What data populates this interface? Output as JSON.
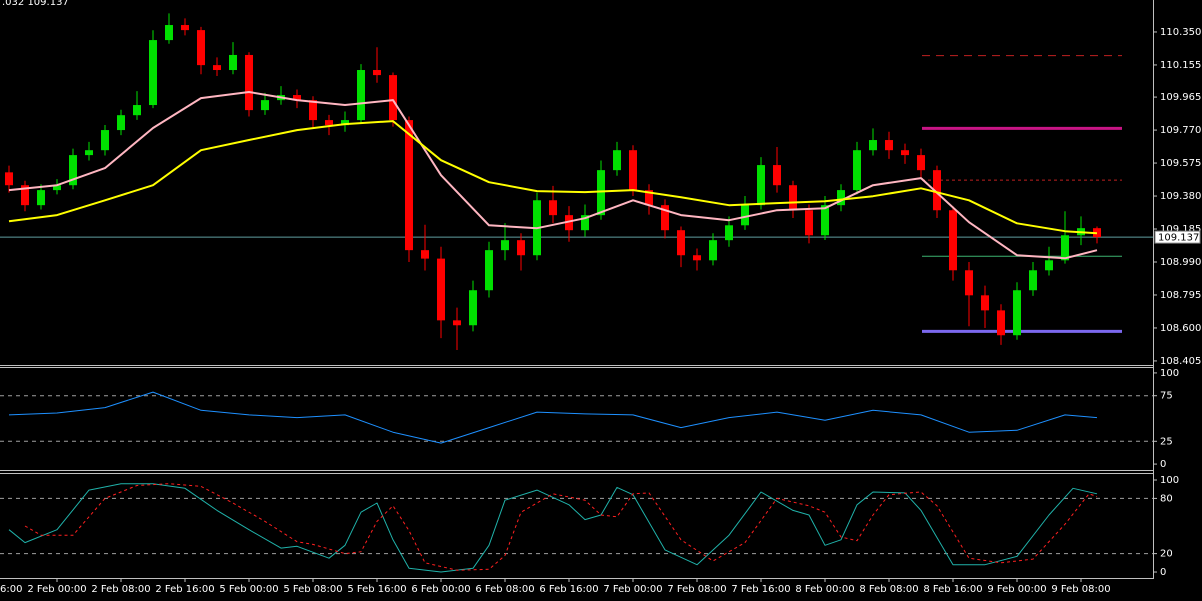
{
  "chart_data": [
    {
      "type": "candlestick",
      "title": ".032 109.137",
      "open": [
        109.52,
        109.444,
        109.326,
        109.415,
        109.444,
        109.622,
        109.651,
        109.77,
        109.858,
        109.918,
        110.302,
        110.391,
        110.361,
        110.154,
        110.125,
        110.214,
        109.888,
        109.947,
        109.977,
        109.947,
        109.829,
        109.799,
        109.829,
        110.125,
        110.095,
        109.829,
        109.06,
        109.01,
        108.645,
        108.616,
        108.823,
        109.06,
        109.119,
        109.03,
        109.355,
        109.267,
        109.178,
        109.267,
        109.533,
        109.651,
        109.415,
        109.326,
        109.178,
        109.03,
        109.0,
        109.119,
        109.207,
        109.326,
        109.563,
        109.444,
        109.296,
        109.148,
        109.326,
        109.415,
        109.651,
        109.711,
        109.651,
        109.622,
        109.533,
        109.296,
        108.941,
        108.793,
        108.704,
        108.557,
        108.823,
        108.941,
        109.0,
        109.148,
        109.19
      ],
      "high": [
        109.56,
        109.47,
        109.45,
        109.48,
        109.66,
        109.7,
        109.8,
        109.89,
        110.0,
        110.36,
        110.46,
        110.43,
        110.38,
        110.2,
        110.29,
        110.23,
        109.99,
        110.03,
        110.01,
        109.97,
        109.86,
        109.88,
        110.16,
        110.26,
        110.11,
        109.85,
        109.21,
        109.08,
        108.72,
        108.88,
        109.11,
        109.22,
        109.16,
        109.4,
        109.44,
        109.32,
        109.33,
        109.59,
        109.7,
        109.68,
        109.45,
        109.36,
        109.2,
        109.07,
        109.16,
        109.26,
        109.38,
        109.61,
        109.67,
        109.47,
        109.33,
        109.38,
        109.45,
        109.7,
        109.78,
        109.76,
        109.69,
        109.66,
        109.56,
        109.32,
        108.99,
        108.85,
        108.74,
        108.87,
        108.99,
        109.08,
        109.29,
        109.26,
        109.2
      ],
      "low": [
        109.4,
        109.29,
        109.3,
        109.39,
        109.42,
        109.59,
        109.62,
        109.74,
        109.83,
        109.9,
        110.28,
        110.33,
        110.1,
        110.09,
        110.1,
        109.85,
        109.86,
        109.92,
        109.9,
        109.78,
        109.74,
        109.76,
        109.81,
        110.05,
        109.79,
        108.99,
        108.94,
        108.54,
        108.47,
        108.58,
        108.78,
        109.0,
        108.94,
        109.0,
        109.22,
        109.11,
        109.14,
        109.24,
        109.5,
        109.38,
        109.27,
        109.13,
        108.96,
        108.94,
        108.97,
        109.08,
        109.18,
        109.3,
        109.4,
        109.25,
        109.1,
        109.12,
        109.29,
        109.39,
        109.62,
        109.6,
        109.57,
        109.48,
        109.25,
        108.88,
        108.61,
        108.6,
        108.5,
        108.53,
        108.79,
        108.91,
        108.98,
        109.09,
        109.1
      ],
      "close": [
        109.444,
        109.326,
        109.415,
        109.444,
        109.622,
        109.651,
        109.77,
        109.858,
        109.918,
        110.302,
        110.391,
        110.361,
        110.154,
        110.125,
        110.214,
        109.888,
        109.947,
        109.977,
        109.947,
        109.829,
        109.799,
        109.829,
        110.125,
        110.095,
        109.829,
        109.06,
        109.01,
        108.645,
        108.616,
        108.823,
        109.06,
        109.119,
        109.03,
        109.355,
        109.267,
        109.178,
        109.267,
        109.533,
        109.651,
        109.415,
        109.326,
        109.178,
        109.03,
        109.0,
        109.119,
        109.207,
        109.326,
        109.563,
        109.444,
        109.296,
        109.148,
        109.326,
        109.415,
        109.651,
        109.711,
        109.651,
        109.622,
        109.533,
        109.296,
        108.941,
        108.793,
        108.704,
        108.557,
        108.823,
        108.941,
        109.0,
        109.148,
        109.19,
        109.137
      ],
      "up_color": "#00e000",
      "down_color": "#ff0000",
      "series": [
        {
          "color": "#ffb6c1",
          "x": [
            0,
            3,
            6,
            9,
            12,
            15,
            18,
            21,
            24,
            27,
            30,
            33,
            36,
            39,
            42,
            45,
            48,
            51,
            54,
            57,
            60,
            63,
            66,
            68
          ],
          "values": [
            109.415,
            109.444,
            109.545,
            109.782,
            109.959,
            109.995,
            109.947,
            109.918,
            109.947,
            109.503,
            109.207,
            109.19,
            109.249,
            109.355,
            109.267,
            109.237,
            109.296,
            109.308,
            109.444,
            109.486,
            109.225,
            109.03,
            109.012,
            109.06
          ]
        },
        {
          "color": "#ffff00",
          "x": [
            0,
            3,
            6,
            9,
            12,
            15,
            18,
            21,
            24,
            27,
            30,
            33,
            36,
            39,
            42,
            45,
            48,
            51,
            54,
            57,
            60,
            63,
            66,
            68
          ],
          "values": [
            109.231,
            109.267,
            109.355,
            109.444,
            109.651,
            109.711,
            109.77,
            109.805,
            109.823,
            109.592,
            109.462,
            109.409,
            109.403,
            109.415,
            109.373,
            109.326,
            109.338,
            109.349,
            109.379,
            109.426,
            109.355,
            109.219,
            109.172,
            109.16
          ]
        }
      ],
      "levels": [
        {
          "value": 110.21,
          "color": "#c02020",
          "style": "dashed"
        },
        {
          "value": 109.78,
          "color": "#c71585",
          "style": "solid"
        },
        {
          "value": 109.474,
          "color": "#c02020",
          "style": "dotted"
        },
        {
          "value": 109.024,
          "color": "#3cb371",
          "style": "thin"
        },
        {
          "value": 108.58,
          "color": "#7b68ee",
          "style": "solid"
        }
      ],
      "current_price": 109.137,
      "ylim": [
        108.381,
        110.539
      ],
      "yticks": [
        {
          "value": 110.35,
          "label": "110.350"
        },
        110.155,
        109.965,
        {
          "value": 109.77,
          "label": "109.770"
        },
        109.575,
        {
          "value": 109.38,
          "label": "109.380"
        },
        109.185,
        {
          "value": 108.99,
          "label": "108.990"
        },
        108.795,
        {
          "value": 108.6,
          "label": "108.600"
        },
        108.405
      ]
    },
    {
      "type": "line",
      "series": [
        {
          "color": "#1e90ff",
          "x": [
            0,
            3,
            6,
            9,
            12,
            15,
            18,
            21,
            24,
            27,
            30,
            33,
            36,
            39,
            42,
            45,
            48,
            51,
            54,
            57,
            60,
            63,
            66,
            68
          ],
          "values": [
            54,
            56,
            62,
            79,
            59,
            54,
            51,
            54,
            35,
            23,
            40,
            57,
            55,
            54,
            40,
            51,
            57,
            48,
            59,
            54,
            35,
            37,
            54,
            51
          ]
        }
      ],
      "levels": [
        {
          "value": 75,
          "color": "#a0a0a0",
          "style": "dashed"
        },
        {
          "value": 25,
          "color": "#a0a0a0",
          "style": "dashed"
        }
      ],
      "ylim": [
        -6.5,
        106.5
      ],
      "yticks": [
        100,
        75,
        25,
        0
      ]
    },
    {
      "type": "line",
      "series": [
        {
          "color": "#20b2aa",
          "style": "solid",
          "x": [
            0,
            1,
            3,
            5,
            7,
            9,
            11,
            13,
            15,
            17,
            18,
            20,
            21,
            22,
            23,
            24,
            25,
            27,
            29,
            30,
            31,
            33,
            35,
            36,
            37,
            38,
            39,
            41,
            43,
            45,
            47,
            49,
            50,
            51,
            52,
            53,
            54,
            56,
            57,
            59,
            61,
            63,
            65,
            66.5,
            68
          ],
          "values": [
            46,
            32,
            46,
            89,
            96,
            96,
            91,
            67,
            46,
            26,
            28,
            15,
            29,
            65,
            75,
            35,
            4,
            0,
            4,
            29,
            78,
            89,
            73,
            57,
            62,
            92,
            84,
            24,
            8,
            40,
            87,
            67,
            62,
            29,
            35,
            73,
            87,
            86,
            67,
            8,
            8,
            17,
            62,
            91,
            85
          ]
        },
        {
          "color": "#ff2020",
          "style": "dashed",
          "x": [
            1,
            2,
            4,
            6,
            8,
            10,
            12,
            14,
            16,
            18,
            19,
            21,
            22,
            23,
            24,
            25,
            26,
            28,
            30,
            31,
            32,
            34,
            36,
            37,
            38,
            39,
            40,
            42,
            44,
            46,
            48,
            50,
            51,
            52,
            53,
            54,
            55,
            57,
            58,
            60,
            62,
            64,
            66,
            67.5,
            68
          ],
          "values": [
            50,
            40,
            40,
            80,
            94,
            96,
            93,
            75,
            55,
            33,
            30,
            20,
            22,
            55,
            72,
            45,
            10,
            2,
            3,
            18,
            65,
            85,
            78,
            62,
            60,
            85,
            86,
            35,
            12,
            32,
            80,
            72,
            65,
            38,
            34,
            62,
            84,
            87,
            72,
            15,
            10,
            14,
            52,
            85,
            82
          ]
        }
      ],
      "levels": [
        {
          "value": 80,
          "color": "#a0a0a0",
          "style": "dashed"
        },
        {
          "value": 20,
          "color": "#a0a0a0",
          "style": "dashed"
        }
      ],
      "ylim": [
        -6.5,
        107.6
      ],
      "yticks": [
        100,
        80,
        20,
        0
      ],
      "xticks": [
        {
          "value": -1,
          "label": "6:00"
        },
        {
          "value": 3,
          "label": "2 Feb 00:00"
        },
        {
          "value": 7,
          "label": "2 Feb 08:00"
        },
        {
          "value": 11,
          "label": "2 Feb 16:00"
        },
        {
          "value": 15,
          "label": "5 Feb 00:00"
        },
        {
          "value": 19,
          "label": "5 Feb 08:00"
        },
        {
          "value": 23,
          "label": "5 Feb 16:00"
        },
        {
          "value": 27,
          "label": "6 Feb 00:00"
        },
        {
          "value": 31,
          "label": "6 Feb 08:00"
        },
        {
          "value": 35,
          "label": "6 Feb 16:00"
        },
        {
          "value": 39,
          "label": "7 Feb 00:00"
        },
        {
          "value": 43,
          "label": "7 Feb 08:00"
        },
        {
          "value": 47,
          "label": "7 Feb 16:00"
        },
        {
          "value": 51,
          "label": "8 Feb 00:00"
        },
        {
          "value": 55,
          "label": "8 Feb 08:00"
        },
        {
          "value": 59,
          "label": "8 Feb 16:00"
        },
        {
          "value": 63,
          "label": "9 Feb 00:00"
        },
        {
          "value": 67,
          "label": "9 Feb 08:00"
        }
      ]
    }
  ]
}
